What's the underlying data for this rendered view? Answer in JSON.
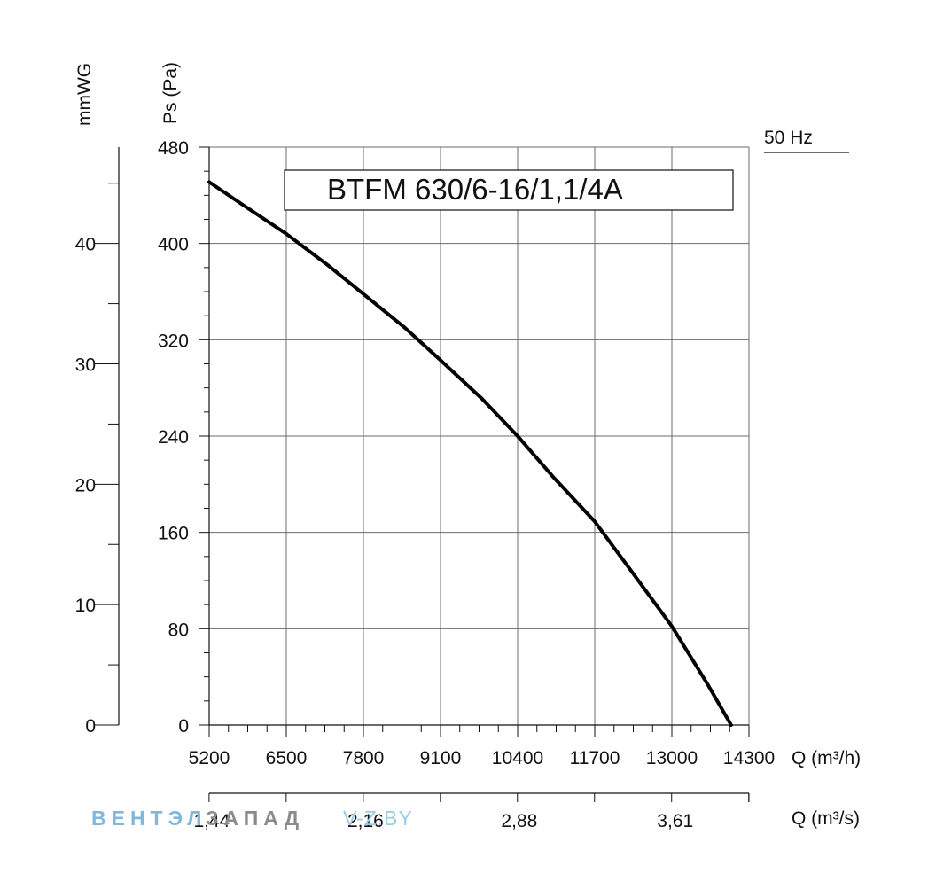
{
  "chart_data": {
    "type": "line",
    "model": "BTFM 630/6-16/1,1/4A",
    "frequency": "50 Hz",
    "ylabel": "Ps (Pa)",
    "ylabel_secondary": "mmWG",
    "xlabel": "Q (m³/h)",
    "xlabel_secondary": "Q (m³/s)",
    "xlim": [
      5200,
      14300
    ],
    "ylim": [
      0,
      480
    ],
    "ylim_secondary": [
      0,
      48
    ],
    "grid": true,
    "x_ticks": [
      5200,
      6500,
      7800,
      9100,
      10400,
      11700,
      13000,
      14300
    ],
    "y_ticks": [
      0,
      80,
      160,
      240,
      320,
      400,
      480
    ],
    "y_ticks_secondary": [
      0,
      10,
      20,
      30,
      40
    ],
    "x_ticks_secondary_labels": [
      "1,44",
      "2,16",
      "2,88",
      "3,61"
    ],
    "x_ticks_secondary_values": [
      1.44,
      2.16,
      2.88,
      3.61
    ],
    "series": [
      {
        "x": [
          5200,
          5800,
          6500,
          7200,
          7800,
          8500,
          9100,
          9800,
          10400,
          11000,
          11700,
          12300,
          13000,
          13600,
          14000
        ],
        "y": [
          451,
          431,
          408,
          382,
          358,
          330,
          303,
          271,
          240,
          206,
          169,
          129,
          82,
          34,
          0
        ]
      }
    ]
  },
  "watermark": {
    "part1": "ВЕНТЭЛ",
    "part2": "ЗАПАД",
    "part3": "V-Z.BY"
  }
}
